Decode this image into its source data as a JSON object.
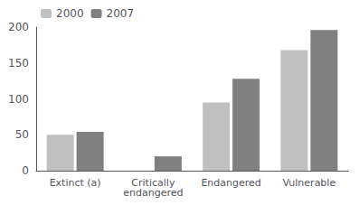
{
  "chart_data": {
    "type": "bar",
    "categories": [
      "Extinct (a)",
      "Critically\nendangered",
      "Endangered",
      "Vulnerable"
    ],
    "series": [
      {
        "name": "2000",
        "color": "#c0c0c0",
        "values": [
          50,
          0,
          95,
          168
        ]
      },
      {
        "name": "2007",
        "color": "#808080",
        "values": [
          54,
          20,
          128,
          196
        ]
      }
    ],
    "ylim": [
      0,
      200
    ],
    "yticks": [
      0,
      50,
      100,
      150,
      200
    ],
    "grid": false,
    "legend": "upper left"
  }
}
